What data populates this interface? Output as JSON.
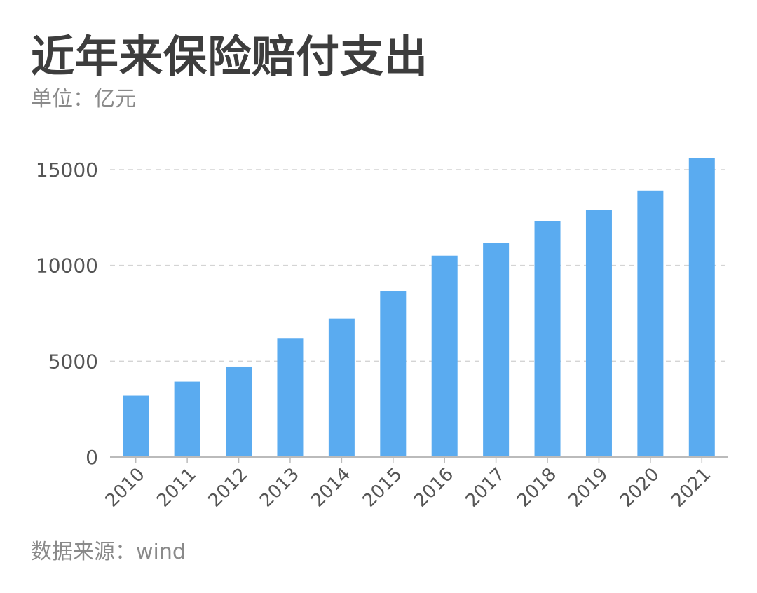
{
  "page": {
    "title": "近年来保险赔付支出",
    "subtitle": "单位：亿元",
    "source": "数据来源：wind"
  },
  "colors": {
    "bar": "#5aabf0",
    "grid": "#d4d4d4",
    "axis": "#bbbbbb",
    "title": "#3d3d3d",
    "muted": "#8a8a8a"
  },
  "chart_data": {
    "type": "bar",
    "title": "近年来保险赔付支出",
    "subtitle": "单位：亿元",
    "categories": [
      "2010",
      "2011",
      "2012",
      "2013",
      "2014",
      "2015",
      "2016",
      "2017",
      "2018",
      "2019",
      "2020",
      "2021"
    ],
    "values": [
      3200,
      3930,
      4720,
      6210,
      7220,
      8670,
      10510,
      11180,
      12300,
      12890,
      13910,
      15610
    ],
    "yticks": [
      0,
      5000,
      10000,
      15000
    ],
    "ylim": [
      0,
      15000
    ],
    "grid": true,
    "legend": "none",
    "xlabel": "",
    "ylabel": ""
  }
}
